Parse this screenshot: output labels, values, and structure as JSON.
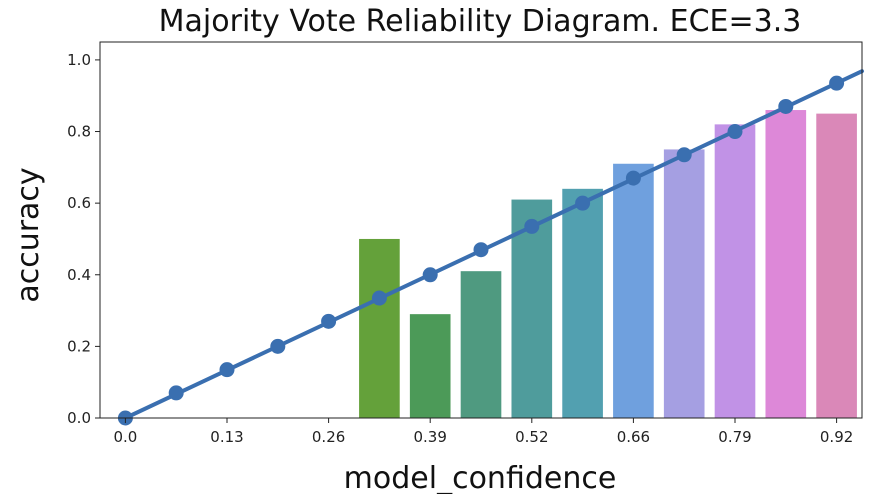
{
  "chart_data": {
    "type": "bar",
    "title": "Majority Vote Reliability Diagram. ECE=3.3",
    "xlabel": "model_confidence",
    "ylabel": "accuracy",
    "ylim": [
      0,
      1.05
    ],
    "yticks": [
      "0.0",
      "0.2",
      "0.4",
      "0.6",
      "0.8",
      "1.0"
    ],
    "xtick_labels": [
      "0.0",
      "0.13",
      "0.26",
      "0.39",
      "0.52",
      "0.66",
      "0.79",
      "0.92"
    ],
    "categories": [
      "0.0",
      "0.07",
      "0.13",
      "0.2",
      "0.26",
      "0.33",
      "0.39",
      "0.46",
      "0.52",
      "0.59",
      "0.66",
      "0.72",
      "0.79",
      "0.85",
      "0.92"
    ],
    "series": [
      {
        "type": "bar",
        "values": [
          null,
          null,
          null,
          null,
          null,
          0.5,
          0.29,
          0.41,
          0.61,
          0.64,
          0.71,
          0.75,
          0.82,
          0.86,
          0.85
        ],
        "colors": [
          "#3b8f3b",
          "#3f8f3a",
          "#4f9a3a",
          "#5a9e3a",
          "#60a040",
          "#64a13a",
          "#4c9a58",
          "#4f9a80",
          "#4f9c9c",
          "#52a0b0",
          "#6fa0de",
          "#a59fe2",
          "#c192e6",
          "#dd88d8",
          "#da88b8"
        ]
      },
      {
        "type": "line",
        "color": "#3a6fb0",
        "values": [
          0.0,
          0.07,
          0.135,
          0.2,
          0.27,
          0.335,
          0.4,
          0.47,
          0.535,
          0.6,
          0.67,
          0.735,
          0.8,
          0.87,
          0.935
        ]
      }
    ],
    "grid": false
  }
}
